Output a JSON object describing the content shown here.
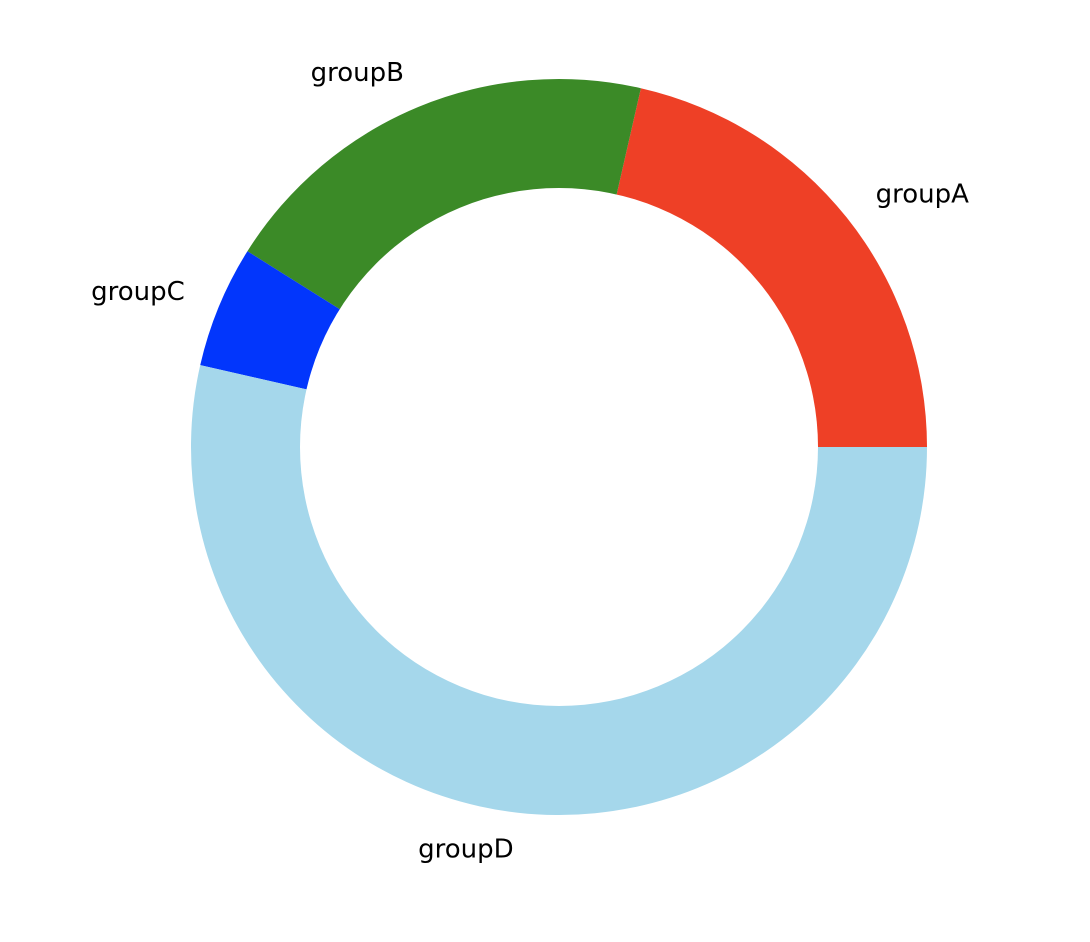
{
  "chart_data": {
    "type": "pie",
    "variant": "donut",
    "start_angle_deg": 0,
    "direction": "counterclockwise",
    "categories": [
      "groupA",
      "groupB",
      "groupC",
      "groupD"
    ],
    "values": [
      12,
      11,
      3,
      30
    ],
    "colors": [
      "#ee4026",
      "#3b8a27",
      "#0236fc",
      "#a5d7eb"
    ],
    "title": "",
    "legend": "none"
  }
}
